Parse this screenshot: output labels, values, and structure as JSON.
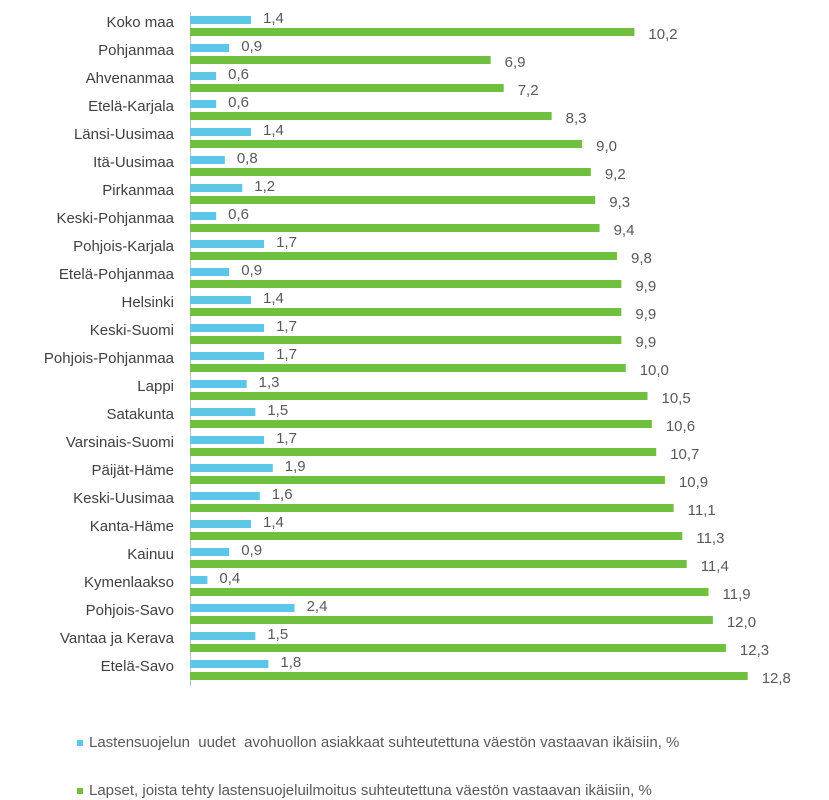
{
  "chart_data": {
    "type": "hbar",
    "categories": [
      "Koko maa",
      "Pohjanmaa",
      "Ahvenanmaa",
      "Etelä-Karjala",
      "Länsi-Uusimaa",
      "Itä-Uusimaa",
      "Pirkanmaa",
      "Keski-Pohjanmaa",
      "Pohjois-Karjala",
      "Etelä-Pohjanmaa",
      "Helsinki",
      "Keski-Suomi",
      "Pohjois-Pohjanmaa",
      "Lappi",
      "Satakunta",
      "Varsinais-Suomi",
      "Päijät-Häme",
      "Keski-Uusimaa",
      "Kanta-Häme",
      "Kainuu",
      "Kymenlaakso",
      "Pohjois-Savo",
      "Vantaa ja Kerava",
      "Etelä-Savo"
    ],
    "series": [
      {
        "name": "Lastensuojelun  uudet  avohuollon asiakkaat suhteutettuna väestön vastaavan ikäisiin, %",
        "color": "#5bc6e6",
        "values": [
          1.4,
          0.9,
          0.6,
          0.6,
          1.4,
          0.8,
          1.2,
          0.6,
          1.7,
          0.9,
          1.4,
          1.7,
          1.7,
          1.3,
          1.5,
          1.7,
          1.9,
          1.6,
          1.4,
          0.9,
          0.4,
          2.4,
          1.5,
          1.8
        ],
        "value_labels": [
          "1,4",
          "0,9",
          "0,6",
          "0,6",
          "1,4",
          "0,8",
          "1,2",
          "0,6",
          "1,7",
          "0,9",
          "1,4",
          "1,7",
          "1,7",
          "1,3",
          "1,5",
          "1,7",
          "1,9",
          "1,6",
          "1,4",
          "0,9",
          "0,4",
          "2,4",
          "1,5",
          "1,8"
        ]
      },
      {
        "name": "Lapset, joista tehty lastensuojeluilmoitus suhteutettuna väestön vastaavan ikäisiin, %",
        "color": "#70bf3f",
        "values": [
          10.2,
          6.9,
          7.2,
          8.3,
          9.0,
          9.2,
          9.3,
          9.4,
          9.8,
          9.9,
          9.9,
          9.9,
          10.0,
          10.5,
          10.6,
          10.7,
          10.9,
          11.1,
          11.3,
          11.4,
          11.9,
          12.0,
          12.3,
          12.8
        ],
        "value_labels": [
          "10,2",
          "6,9",
          "7,2",
          "8,3",
          "9,0",
          "9,2",
          "9,3",
          "9,4",
          "9,8",
          "9,9",
          "9,9",
          "9,9",
          "10,0",
          "10,5",
          "10,6",
          "10,7",
          "10,9",
          "11,1",
          "11,3",
          "11,4",
          "11,9",
          "12,0",
          "12,3",
          "12,8"
        ]
      }
    ],
    "xlim": [
      0,
      14
    ]
  }
}
